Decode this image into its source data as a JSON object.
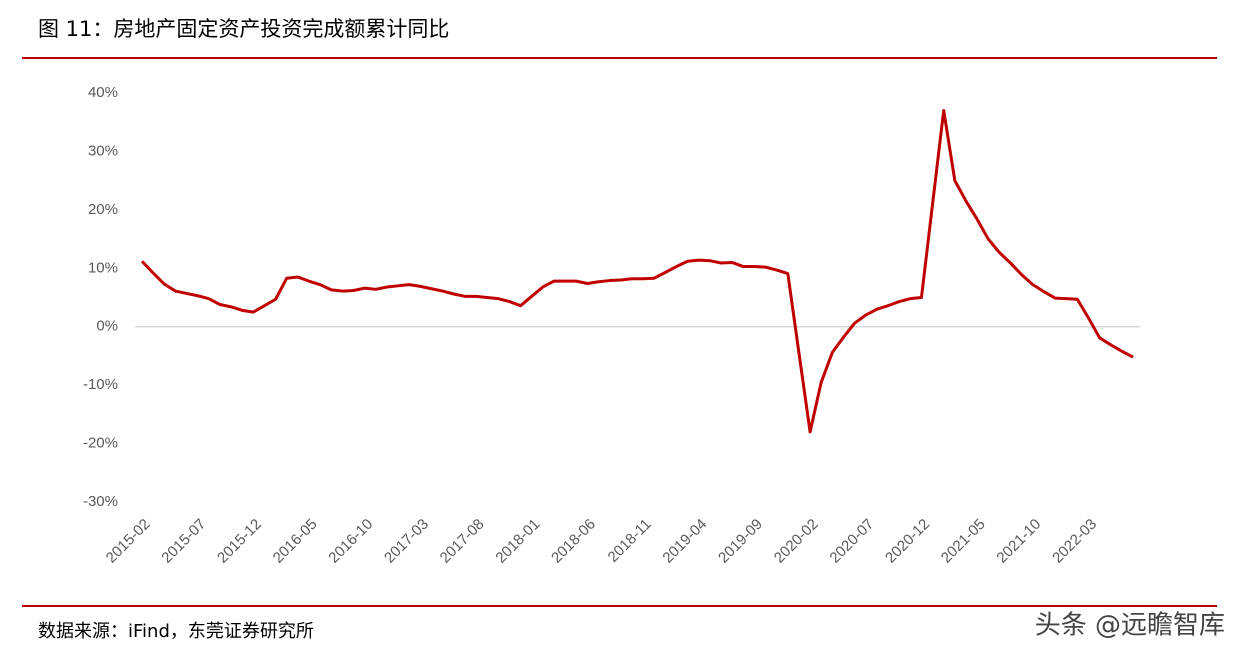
{
  "header": {
    "title": "图 11：房地产固定资产投资完成额累计同比"
  },
  "chart_data": {
    "type": "line",
    "categories": [
      "2015-02",
      null,
      null,
      null,
      null,
      "2015-07",
      null,
      null,
      null,
      null,
      "2015-12",
      null,
      null,
      null,
      null,
      "2016-05",
      null,
      null,
      null,
      null,
      "2016-10",
      null,
      null,
      null,
      null,
      "2017-03",
      null,
      null,
      null,
      null,
      "2017-08",
      null,
      null,
      null,
      null,
      "2018-01",
      null,
      null,
      null,
      null,
      "2018-06",
      null,
      null,
      null,
      null,
      "2018-11",
      null,
      null,
      null,
      null,
      "2019-04",
      null,
      null,
      null,
      null,
      "2019-09",
      null,
      null,
      null,
      null,
      "2020-02",
      null,
      null,
      null,
      null,
      "2020-07",
      null,
      null,
      null,
      null,
      "2020-12",
      null,
      null,
      null,
      null,
      "2021-05",
      null,
      null,
      null,
      null,
      "2021-10",
      null,
      null,
      null,
      null,
      "2022-03",
      null,
      null,
      null,
      null
    ],
    "series": [
      {
        "color": "#c00000",
        "values": [
          11.2,
          9.2,
          7.3,
          6.1,
          5.7,
          5.3,
          4.8,
          3.8,
          3.4,
          2.8,
          2.5,
          3.6,
          4.7,
          8.3,
          8.5,
          7.8,
          7.2,
          6.3,
          6.1,
          6.2,
          6.6,
          6.4,
          6.8,
          7.0,
          7.2,
          6.9,
          6.5,
          6.1,
          5.6,
          5.2,
          5.2,
          5.0,
          4.8,
          4.3,
          3.6,
          5.2,
          6.8,
          7.8,
          7.8,
          7.8,
          7.4,
          7.7,
          7.9,
          8.0,
          8.2,
          8.2,
          8.3,
          9.3,
          10.3,
          11.2,
          11.4,
          11.3,
          10.9,
          11.0,
          10.3,
          10.3,
          10.2,
          9.7,
          9.1,
          -4.5,
          -18.0,
          -9.5,
          -4.4,
          -1.8,
          0.6,
          2.0,
          3.0,
          3.6,
          4.3,
          4.8,
          5.0,
          21.0,
          37.0,
          25.0,
          21.5,
          18.4,
          15.0,
          12.7,
          10.9,
          8.9,
          7.2,
          6.0,
          4.9,
          4.8,
          4.7,
          1.5,
          -1.9,
          -3.1,
          -4.2,
          -5.2
        ]
      }
    ],
    "ylim": [
      -30,
      40
    ],
    "yticks": [
      {
        "value": -30,
        "label": "-30%"
      },
      {
        "value": -20,
        "label": "-20%"
      },
      {
        "value": -10,
        "label": "-10%"
      },
      {
        "value": 0,
        "label": "0%"
      },
      {
        "value": 10,
        "label": "10%"
      },
      {
        "value": 20,
        "label": "20%"
      },
      {
        "value": 30,
        "label": "30%"
      },
      {
        "value": 40,
        "label": "40%"
      }
    ],
    "grid": false
  },
  "footer": {
    "source": "数据来源：iFind，东莞证券研究所",
    "watermark": "头条 @远瞻智库"
  }
}
